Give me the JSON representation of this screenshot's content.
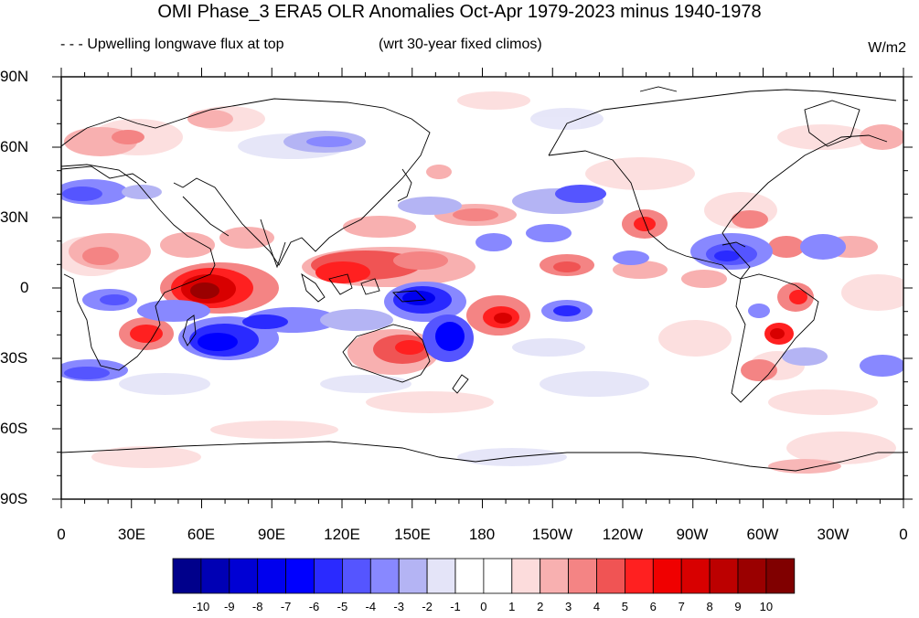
{
  "map": {
    "title": "OMI Phase_3 ERA5 OLR Anomalies Oct-Apr 1979-2023 minus 1940-1978",
    "subtitle_left": "- - - Upwelling longwave flux at top",
    "subtitle_mid": "(wrt 30-year fixed climos)",
    "units": "W/m2",
    "lat_labels": [
      "90N",
      "60N",
      "30N",
      "0",
      "30S",
      "60S",
      "90S"
    ],
    "lon_labels": [
      "0",
      "30E",
      "60E",
      "90E",
      "120E",
      "150E",
      "180",
      "150W",
      "120W",
      "90W",
      "60W",
      "30W",
      "0"
    ],
    "colorbar": {
      "levels": [
        "-10",
        "-9",
        "-8",
        "-7",
        "-6",
        "-5",
        "-4",
        "-3",
        "-2",
        "-1",
        "0",
        "1",
        "2",
        "3",
        "4",
        "5",
        "6",
        "7",
        "8",
        "9",
        "10"
      ],
      "colors": [
        "#00008b",
        "#0000b4",
        "#0000d4",
        "#0000ee",
        "#0000ff",
        "#2a2aff",
        "#5555ff",
        "#8888ff",
        "#b4b4f4",
        "#e4e4f8",
        "#ffffff",
        "#ffffff",
        "#fcdcdc",
        "#f8b0b0",
        "#f48484",
        "#f05454",
        "#ff2020",
        "#f00000",
        "#d80000",
        "#bc0000",
        "#9a0000",
        "#800000"
      ]
    }
  }
}
